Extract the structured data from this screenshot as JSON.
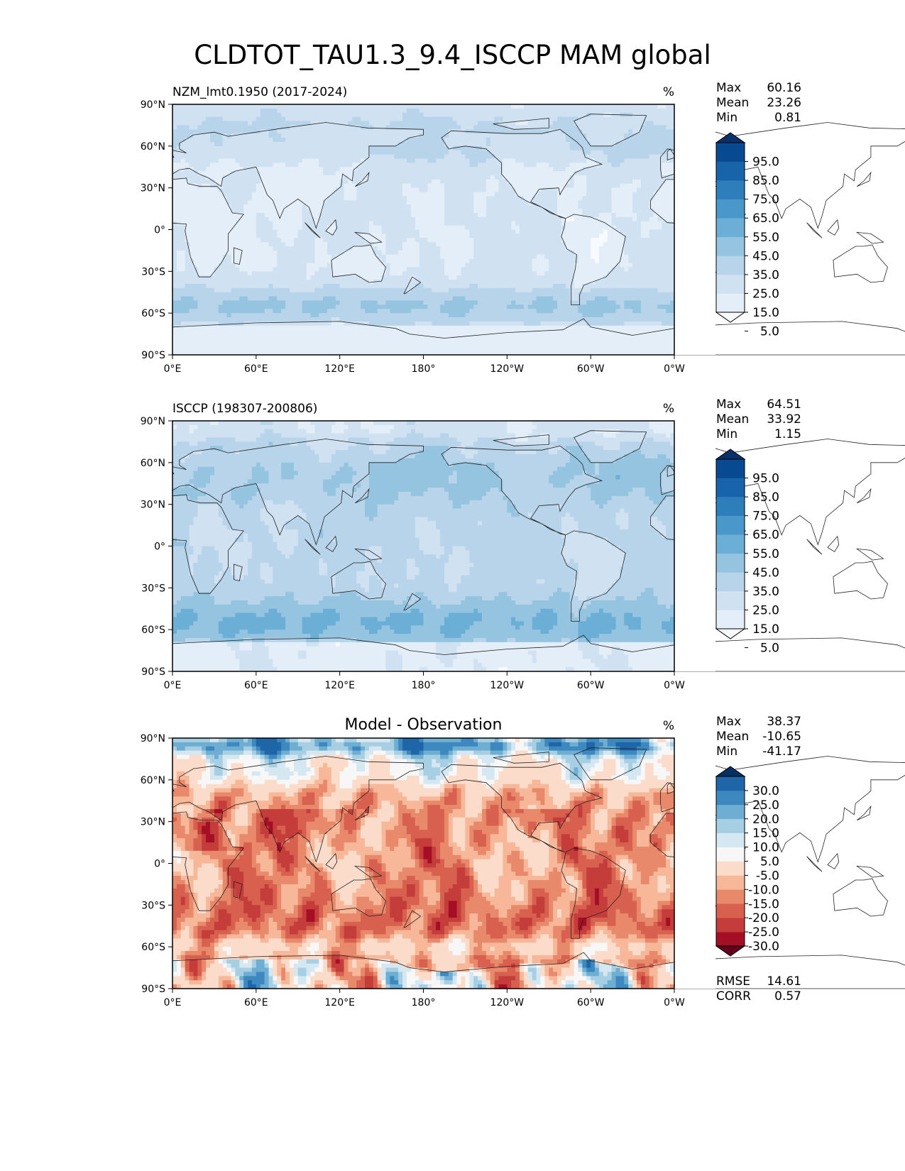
{
  "title": "CLDTOT_TAU1.3_9.4_ISCCP MAM global",
  "chart_data": [
    {
      "type": "heatmap",
      "subtitle": "NZM_lmt0.1950 (2017-2024)",
      "units": "%",
      "stats": [
        {
          "label": "Max",
          "value": "60.16"
        },
        {
          "label": "Mean",
          "value": "23.26"
        },
        {
          "label": "Min",
          "value": "0.81"
        }
      ],
      "colorbar_ticks": [
        "95.0",
        "85.0",
        "75.0",
        "65.0",
        "55.0",
        "45.0",
        "35.0",
        "25.0",
        "15.0",
        "5.0"
      ],
      "colorbar_colors": [
        "#f7fbff",
        "#e3eef8",
        "#d0e1f2",
        "#b7d4ea",
        "#94c4df",
        "#6baed6",
        "#4a98c9",
        "#2e7ebc",
        "#1764ab",
        "#084a91",
        "#08306b"
      ],
      "field": "model",
      "xlim": [
        0,
        360
      ],
      "ylim": [
        -90,
        90
      ]
    },
    {
      "type": "heatmap",
      "subtitle": "ISCCP (198307-200806)",
      "units": "%",
      "stats": [
        {
          "label": "Max",
          "value": "64.51"
        },
        {
          "label": "Mean",
          "value": "33.92"
        },
        {
          "label": "Min",
          "value": "1.15"
        }
      ],
      "colorbar_ticks": [
        "95.0",
        "85.0",
        "75.0",
        "65.0",
        "55.0",
        "45.0",
        "35.0",
        "25.0",
        "15.0",
        "5.0"
      ],
      "colorbar_colors": [
        "#f7fbff",
        "#e3eef8",
        "#d0e1f2",
        "#b7d4ea",
        "#94c4df",
        "#6baed6",
        "#4a98c9",
        "#2e7ebc",
        "#1764ab",
        "#084a91",
        "#08306b"
      ],
      "field": "obs",
      "xlim": [
        0,
        360
      ],
      "ylim": [
        -90,
        90
      ]
    },
    {
      "type": "heatmap",
      "subtitle": "Model - Observation",
      "units": "%",
      "stats": [
        {
          "label": "Max",
          "value": "38.37"
        },
        {
          "label": "Mean",
          "value": "-10.65"
        },
        {
          "label": "Min",
          "value": "-41.17"
        }
      ],
      "colorbar_ticks": [
        "30.0",
        "25.0",
        "20.0",
        "15.0",
        "10.0",
        "5.0",
        "-5.0",
        "-10.0",
        "-15.0",
        "-20.0",
        "-25.0",
        "-30.0"
      ],
      "colorbar_colors": [
        "#67001f",
        "#a50f26",
        "#c53d3a",
        "#d8604e",
        "#e8896c",
        "#f7b799",
        "#fbdccb",
        "#f7f7f7",
        "#d5e7f1",
        "#a7cfe4",
        "#6eaed2",
        "#3d88bf",
        "#1f66a9",
        "#053061"
      ],
      "field": "diff",
      "xlim": [
        0,
        360
      ],
      "ylim": [
        -90,
        90
      ],
      "extra_stats": [
        {
          "label": "RMSE",
          "value": "14.61"
        },
        {
          "label": "CORR",
          "value": "0.57"
        }
      ]
    }
  ],
  "axes": {
    "lat_ticks": [
      {
        "value": 90,
        "label": "90°N"
      },
      {
        "value": 60,
        "label": "60°N"
      },
      {
        "value": 30,
        "label": "30°N"
      },
      {
        "value": 0,
        "label": "0°"
      },
      {
        "value": -30,
        "label": "30°S"
      },
      {
        "value": -60,
        "label": "60°S"
      },
      {
        "value": -90,
        "label": "90°S"
      }
    ],
    "lon_ticks": [
      {
        "value": 0,
        "label": "0°E"
      },
      {
        "value": 60,
        "label": "60°E"
      },
      {
        "value": 120,
        "label": "120°E"
      },
      {
        "value": 180,
        "label": "180°"
      },
      {
        "value": 240,
        "label": "120°W"
      },
      {
        "value": 300,
        "label": "60°W"
      },
      {
        "value": 360,
        "label": "0°W"
      }
    ]
  }
}
